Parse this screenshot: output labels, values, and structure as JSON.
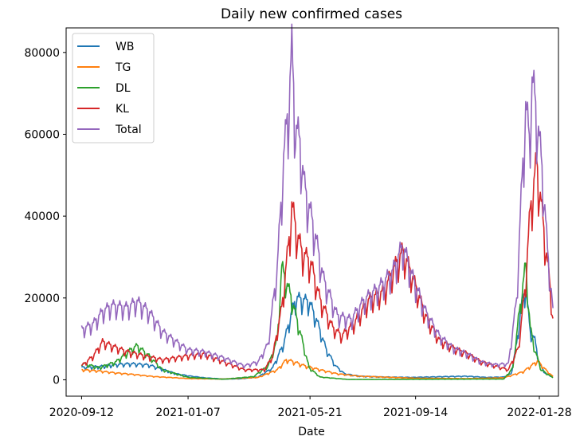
{
  "chart_data": {
    "type": "line",
    "title": "Daily new confirmed cases",
    "xlabel": "Date",
    "ylabel": "",
    "x_ticks": [
      "2020-09-12",
      "2021-01-07",
      "2021-05-21",
      "2021-09-14",
      "2022-01-28"
    ],
    "y_ticks": [
      0,
      20000,
      40000,
      60000,
      80000
    ],
    "xlim": [
      "2020-08-26",
      "2022-02-18"
    ],
    "ylim": [
      -4000,
      86000
    ],
    "grid": false,
    "legend_position": "top-left",
    "series": [
      {
        "name": "WB",
        "color": "#1f77b4",
        "points": [
          [
            "2020-09-12",
            3100
          ],
          [
            "2020-10-01",
            3300
          ],
          [
            "2020-10-20",
            3800
          ],
          [
            "2020-11-05",
            4000
          ],
          [
            "2020-11-25",
            3700
          ],
          [
            "2020-12-10",
            2600
          ],
          [
            "2020-12-25",
            1500
          ],
          [
            "2021-01-07",
            1000
          ],
          [
            "2021-01-25",
            500
          ],
          [
            "2021-02-15",
            200
          ],
          [
            "2021-03-05",
            250
          ],
          [
            "2021-03-25",
            700
          ],
          [
            "2021-04-10",
            3000
          ],
          [
            "2021-04-22",
            9000
          ],
          [
            "2021-05-01",
            17000
          ],
          [
            "2021-05-06",
            20500
          ],
          [
            "2021-05-11",
            20000
          ],
          [
            "2021-05-20",
            19500
          ],
          [
            "2021-05-28",
            15000
          ],
          [
            "2021-06-08",
            7500
          ],
          [
            "2021-06-18",
            3500
          ],
          [
            "2021-06-28",
            1500
          ],
          [
            "2021-07-15",
            900
          ],
          [
            "2021-08-10",
            700
          ],
          [
            "2021-09-10",
            600
          ],
          [
            "2021-10-15",
            800
          ],
          [
            "2021-11-10",
            900
          ],
          [
            "2021-12-01",
            600
          ],
          [
            "2021-12-20",
            700
          ],
          [
            "2021-12-28",
            1500
          ],
          [
            "2022-01-03",
            9000
          ],
          [
            "2022-01-08",
            18000
          ],
          [
            "2022-01-13",
            23000
          ],
          [
            "2022-01-18",
            12000
          ],
          [
            "2022-01-23",
            10000
          ],
          [
            "2022-01-28",
            4000
          ],
          [
            "2022-02-04",
            1500
          ],
          [
            "2022-02-12",
            800
          ]
        ]
      },
      {
        "name": "TG",
        "color": "#ff7f0e",
        "points": [
          [
            "2020-09-12",
            2500
          ],
          [
            "2020-10-01",
            2200
          ],
          [
            "2020-10-20",
            1700
          ],
          [
            "2020-11-10",
            1300
          ],
          [
            "2020-12-01",
            800
          ],
          [
            "2020-12-25",
            500
          ],
          [
            "2021-01-07",
            300
          ],
          [
            "2021-02-15",
            200
          ],
          [
            "2021-03-25",
            600
          ],
          [
            "2021-04-15",
            2500
          ],
          [
            "2021-04-25",
            5000
          ],
          [
            "2021-05-03",
            4500
          ],
          [
            "2021-05-15",
            3500
          ],
          [
            "2021-06-01",
            2500
          ],
          [
            "2021-06-20",
            1500
          ],
          [
            "2021-07-15",
            900
          ],
          [
            "2021-09-14",
            400
          ],
          [
            "2021-11-10",
            300
          ],
          [
            "2021-12-20",
            500
          ],
          [
            "2022-01-10",
            2000
          ],
          [
            "2022-01-22",
            4000
          ],
          [
            "2022-01-26",
            4700
          ],
          [
            "2022-02-04",
            2500
          ],
          [
            "2022-02-12",
            800
          ]
        ]
      },
      {
        "name": "DL",
        "color": "#2ca02c",
        "points": [
          [
            "2020-09-12",
            4200
          ],
          [
            "2020-10-01",
            3000
          ],
          [
            "2020-10-20",
            4500
          ],
          [
            "2020-11-05",
            7500
          ],
          [
            "2020-11-12",
            8500
          ],
          [
            "2020-11-25",
            6000
          ],
          [
            "2020-12-10",
            2500
          ],
          [
            "2021-01-07",
            600
          ],
          [
            "2021-02-15",
            150
          ],
          [
            "2021-03-20",
            800
          ],
          [
            "2021-04-05",
            3500
          ],
          [
            "2021-04-15",
            10000
          ],
          [
            "2021-04-20",
            28000
          ],
          [
            "2021-04-24",
            25000
          ],
          [
            "2021-05-01",
            20000
          ],
          [
            "2021-05-10",
            12000
          ],
          [
            "2021-05-20",
            3000
          ],
          [
            "2021-06-01",
            700
          ],
          [
            "2021-07-01",
            100
          ],
          [
            "2021-12-20",
            200
          ],
          [
            "2021-12-30",
            3000
          ],
          [
            "2022-01-05",
            15000
          ],
          [
            "2022-01-09",
            22000
          ],
          [
            "2022-01-13",
            28500
          ],
          [
            "2022-01-18",
            13000
          ],
          [
            "2022-01-23",
            7500
          ],
          [
            "2022-01-30",
            2500
          ],
          [
            "2022-02-12",
            500
          ]
        ]
      },
      {
        "name": "KL",
        "color": "#d62728",
        "points": [
          [
            "2020-09-12",
            3500
          ],
          [
            "2020-09-25",
            6000
          ],
          [
            "2020-10-05",
            9500
          ],
          [
            "2020-10-15",
            8500
          ],
          [
            "2020-11-01",
            7000
          ],
          [
            "2020-11-20",
            6000
          ],
          [
            "2020-12-10",
            5000
          ],
          [
            "2021-01-07",
            6000
          ],
          [
            "2021-01-25",
            6500
          ],
          [
            "2021-02-15",
            4500
          ],
          [
            "2021-03-10",
            2500
          ],
          [
            "2021-04-01",
            2500
          ],
          [
            "2021-04-10",
            6000
          ],
          [
            "2021-04-20",
            18000
          ],
          [
            "2021-04-28",
            35000
          ],
          [
            "2021-05-01",
            43500
          ],
          [
            "2021-05-06",
            37000
          ],
          [
            "2021-05-12",
            32000
          ],
          [
            "2021-05-22",
            29000
          ],
          [
            "2021-06-01",
            20000
          ],
          [
            "2021-06-15",
            13000
          ],
          [
            "2021-06-25",
            11000
          ],
          [
            "2021-07-08",
            14000
          ],
          [
            "2021-07-25",
            20000
          ],
          [
            "2021-08-10",
            22000
          ],
          [
            "2021-08-22",
            28000
          ],
          [
            "2021-08-31",
            32000
          ],
          [
            "2021-09-10",
            26000
          ],
          [
            "2021-09-25",
            16000
          ],
          [
            "2021-10-10",
            10000
          ],
          [
            "2021-10-25",
            8000
          ],
          [
            "2021-11-10",
            6500
          ],
          [
            "2021-11-25",
            4500
          ],
          [
            "2021-12-10",
            3500
          ],
          [
            "2021-12-25",
            2500
          ],
          [
            "2022-01-05",
            8000
          ],
          [
            "2022-01-12",
            22000
          ],
          [
            "2022-01-18",
            42000
          ],
          [
            "2022-01-22",
            49000
          ],
          [
            "2022-01-25",
            54000
          ],
          [
            "2022-01-28",
            48000
          ],
          [
            "2022-02-03",
            35000
          ],
          [
            "2022-02-08",
            25000
          ],
          [
            "2022-02-12",
            15000
          ]
        ]
      },
      {
        "name": "Total",
        "color": "#9467bd",
        "points": [
          [
            "2020-09-12",
            12500
          ],
          [
            "2020-09-25",
            14000
          ],
          [
            "2020-10-05",
            17000
          ],
          [
            "2020-10-15",
            18500
          ],
          [
            "2020-11-01",
            18000
          ],
          [
            "2020-11-12",
            19500
          ],
          [
            "2020-11-25",
            17000
          ],
          [
            "2020-12-10",
            12000
          ],
          [
            "2020-12-25",
            9500
          ],
          [
            "2021-01-07",
            7500
          ],
          [
            "2021-01-25",
            7000
          ],
          [
            "2021-02-15",
            5500
          ],
          [
            "2021-03-10",
            3500
          ],
          [
            "2021-03-25",
            4500
          ],
          [
            "2021-04-05",
            9000
          ],
          [
            "2021-04-15",
            28000
          ],
          [
            "2021-04-22",
            55000
          ],
          [
            "2021-04-28",
            70000
          ],
          [
            "2021-05-01",
            82000
          ],
          [
            "2021-05-05",
            63000
          ],
          [
            "2021-05-10",
            59000
          ],
          [
            "2021-05-15",
            48000
          ],
          [
            "2021-05-25",
            38000
          ],
          [
            "2021-06-05",
            25000
          ],
          [
            "2021-06-20",
            16000
          ],
          [
            "2021-07-05",
            15000
          ],
          [
            "2021-07-20",
            20000
          ],
          [
            "2021-08-05",
            23000
          ],
          [
            "2021-08-20",
            27000
          ],
          [
            "2021-08-31",
            33500
          ],
          [
            "2021-09-10",
            26000
          ],
          [
            "2021-09-25",
            17000
          ],
          [
            "2021-10-10",
            11000
          ],
          [
            "2021-10-25",
            8000
          ],
          [
            "2021-11-10",
            6500
          ],
          [
            "2021-11-25",
            4500
          ],
          [
            "2021-12-10",
            3800
          ],
          [
            "2021-12-25",
            4000
          ],
          [
            "2022-01-03",
            20000
          ],
          [
            "2022-01-08",
            45000
          ],
          [
            "2022-01-13",
            68000
          ],
          [
            "2022-01-17",
            60000
          ],
          [
            "2022-01-20",
            74000
          ],
          [
            "2022-01-23",
            70000
          ],
          [
            "2022-01-27",
            62000
          ],
          [
            "2022-02-01",
            50000
          ],
          [
            "2022-02-06",
            32000
          ],
          [
            "2022-02-12",
            17500
          ]
        ]
      }
    ]
  }
}
